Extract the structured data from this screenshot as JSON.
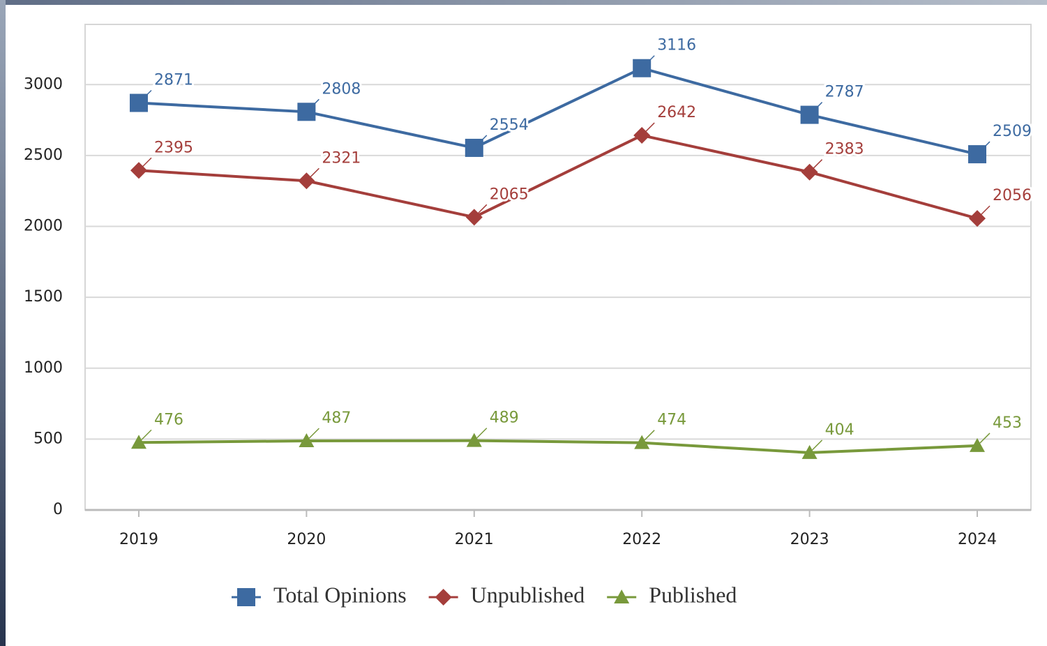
{
  "chart_data": {
    "type": "line",
    "categories": [
      "2019",
      "2020",
      "2021",
      "2022",
      "2023",
      "2024"
    ],
    "series": [
      {
        "name": "Total Opinions",
        "color": "#3d6aa1",
        "marker": "square",
        "values": [
          2871,
          2808,
          2554,
          3116,
          2787,
          2509
        ]
      },
      {
        "name": "Unpublished",
        "color": "#a43e3b",
        "marker": "diamond",
        "values": [
          2395,
          2321,
          2065,
          2642,
          2383,
          2056
        ]
      },
      {
        "name": "Published",
        "color": "#78993b",
        "marker": "triangle",
        "values": [
          476,
          487,
          489,
          474,
          404,
          453
        ]
      }
    ],
    "ylim": [
      0,
      3400
    ],
    "yticks": [
      0,
      500,
      1000,
      1500,
      2000,
      2500,
      3000
    ],
    "grid": true,
    "legend": "bottom"
  }
}
